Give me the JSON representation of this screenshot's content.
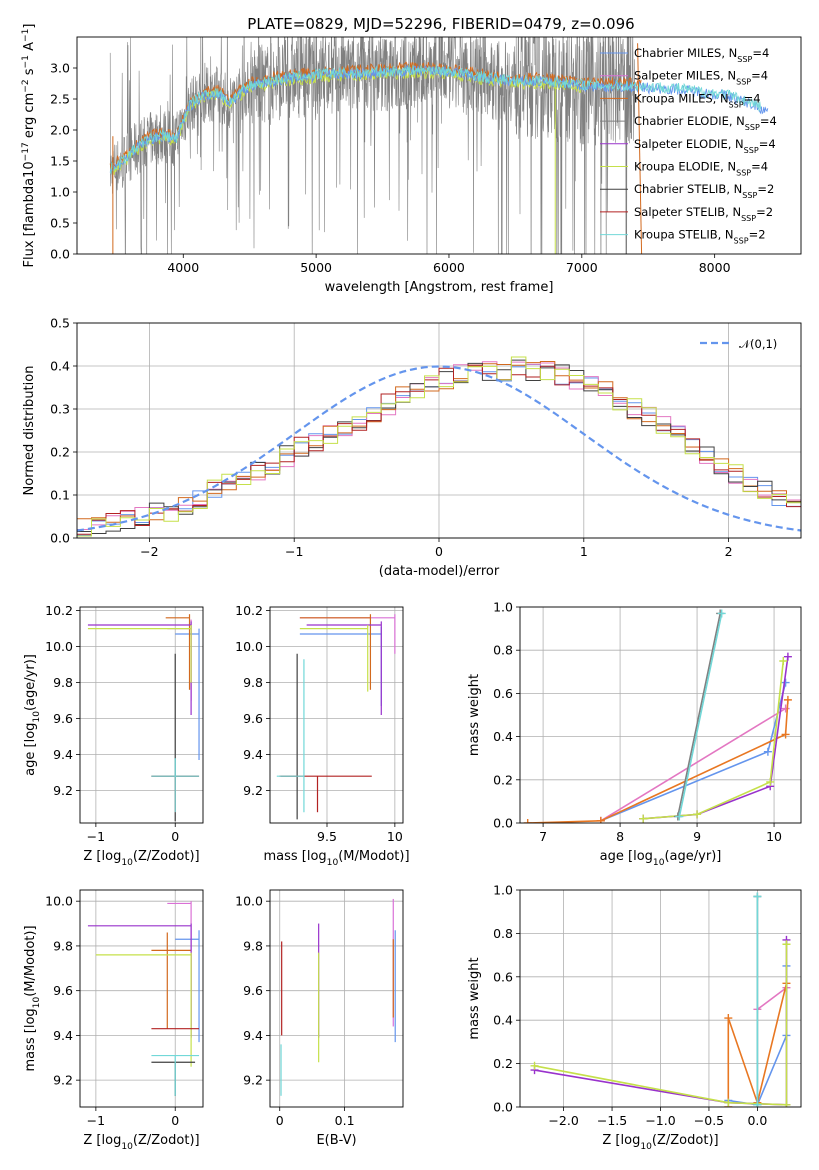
{
  "figure": {
    "title": "PLATE=0829, MJD=52296, FIBERID=0479, z=0.096"
  },
  "colors": {
    "cornflower": "#6495ED",
    "orchid": "#DA70D6",
    "chocolate": "#D2691E",
    "gray": "#808080",
    "purple": "#9932CC",
    "yellowgreen": "#C5E04A",
    "dim": "#404040",
    "red": "#B22222",
    "turquoise": "#72D8D8",
    "hotpink": "#E377C2",
    "orange": "#E87722",
    "grid": "#b0b0b0"
  },
  "chart_data": [
    {
      "id": "spectrum",
      "type": "line",
      "xlabel": "wavelength [Angstrom, rest frame]",
      "ylabel": "Flux [f$_\\lambda$10$^{-17}$ erg cm$^{-2}$ s$^{-1}$ A$^{-1}$]",
      "xlim": [
        3200,
        8650
      ],
      "ylim": [
        0,
        3.5
      ],
      "xticks": [
        4000,
        5000,
        6000,
        7000,
        8000
      ],
      "yticks": [
        0.0,
        0.5,
        1.0,
        1.5,
        2.0,
        2.5,
        3.0
      ],
      "legend_position": "top-right",
      "legend": [
        {
          "label": "Chabrier MILES, N$_{SSP}$=4",
          "color": "#6495ED"
        },
        {
          "label": "Salpeter MILES, N$_{SSP}$=4",
          "color": "#DA70D6"
        },
        {
          "label": "Kroupa MILES, N$_{SSP}$=4",
          "color": "#D2691E"
        },
        {
          "label": "Chabrier ELODIE, N$_{SSP}$=4",
          "color": "#808080"
        },
        {
          "label": "Salpeter ELODIE, N$_{SSP}$=4",
          "color": "#9932CC"
        },
        {
          "label": "Kroupa ELODIE, N$_{SSP}$=4",
          "color": "#C5E04A"
        },
        {
          "label": "Chabrier STELIB, N$_{SSP}$=2",
          "color": "#404040"
        },
        {
          "label": "Salpeter STELIB, N$_{SSP}$=2",
          "color": "#B22222"
        },
        {
          "label": "Kroupa STELIB, N$_{SSP}$=2",
          "color": "#72D8D8"
        }
      ],
      "continuum": {
        "x": [
          3450,
          3550,
          3650,
          3750,
          3850,
          3950,
          4000,
          4050,
          4150,
          4250,
          4350,
          4500,
          4700,
          4900,
          5100,
          5300,
          5500,
          5700,
          5900,
          6100,
          6300,
          6500,
          6700,
          6900,
          7100,
          7300,
          7500,
          7700,
          7900,
          8100,
          8300,
          8400
        ],
        "y": [
          1.35,
          1.5,
          1.7,
          1.85,
          1.9,
          1.85,
          2.15,
          2.4,
          2.55,
          2.6,
          2.45,
          2.7,
          2.8,
          2.85,
          2.9,
          2.9,
          2.92,
          2.95,
          2.95,
          2.9,
          2.82,
          2.78,
          2.78,
          2.74,
          2.7,
          2.7,
          2.68,
          2.66,
          2.6,
          2.55,
          2.4,
          2.3
        ]
      }
    },
    {
      "id": "residuals",
      "type": "line",
      "xlabel": "(data-model)/error",
      "ylabel": "Normed distribution",
      "xlim": [
        -2.5,
        2.5
      ],
      "ylim": [
        0,
        0.5
      ],
      "xticks": [
        -2,
        -1,
        0,
        1,
        2
      ],
      "xticklabels": [
        "−2",
        "−1",
        "0",
        "1",
        "2"
      ],
      "yticks": [
        0.0,
        0.1,
        0.2,
        0.3,
        0.4,
        0.5
      ],
      "legend": [
        {
          "label": "$\\mathcal{N}(0,1)$",
          "color": "#6495ED"
        }
      ],
      "bin_width": 0.1,
      "bins_start": -2.5,
      "hist": [
        0.02,
        0.03,
        0.04,
        0.04,
        0.05,
        0.06,
        0.06,
        0.07,
        0.09,
        0.11,
        0.13,
        0.14,
        0.16,
        0.17,
        0.19,
        0.21,
        0.22,
        0.24,
        0.26,
        0.27,
        0.29,
        0.31,
        0.33,
        0.35,
        0.36,
        0.37,
        0.38,
        0.39,
        0.39,
        0.39,
        0.4,
        0.39,
        0.39,
        0.38,
        0.37,
        0.36,
        0.34,
        0.32,
        0.3,
        0.28,
        0.26,
        0.24,
        0.21,
        0.19,
        0.17,
        0.15,
        0.13,
        0.11,
        0.09,
        0.08
      ]
    },
    {
      "id": "age_vs_Z",
      "type": "errorbar",
      "xlabel": "Z [log$_{10}$(Z/Z$_\\odot$)]",
      "ylabel": "age  [log$_{10}$(age/yr)]",
      "xlim": [
        -1.2,
        0.35
      ],
      "ylim": [
        9.02,
        10.22
      ],
      "xticks": [
        -1,
        0
      ],
      "xticklabels": [
        "−1",
        "0"
      ],
      "yticks": [
        9.2,
        9.4,
        9.6,
        9.8,
        10.0,
        10.2
      ],
      "points": [
        {
          "color": "#6495ED",
          "x": 0.3,
          "y": 10.07,
          "xerr": [
            0.3,
            0
          ],
          "yerr": [
            0.7,
            0.03
          ]
        },
        {
          "color": "#DA70D6",
          "x": 0.2,
          "y": 10.1,
          "xerr": [
            0.3,
            0
          ],
          "yerr": [
            0.4,
            0.05
          ]
        },
        {
          "color": "#D2691E",
          "x": 0.18,
          "y": 10.16,
          "xerr": [
            0.3,
            0
          ],
          "yerr": [
            0.4,
            0.02
          ]
        },
        {
          "color": "#9932CC",
          "x": 0.2,
          "y": 10.12,
          "xerr": [
            1.3,
            0
          ],
          "yerr": [
            0.5,
            0.02
          ]
        },
        {
          "color": "#C5E04A",
          "x": 0.2,
          "y": 10.1,
          "xerr": [
            1.3,
            0
          ],
          "yerr": [
            0.3,
            0.02
          ]
        },
        {
          "color": "#404040",
          "x": 0.0,
          "y": 9.28,
          "xerr": [
            0.3,
            0.3
          ],
          "yerr": [
            0.25,
            0.68
          ]
        },
        {
          "color": "#B22222",
          "x": 0.0,
          "y": 9.28,
          "xerr": [
            0.3,
            0.3
          ],
          "yerr": [
            0.2,
            0.0
          ]
        },
        {
          "color": "#72D8D8",
          "x": 0.0,
          "y": 9.28,
          "xerr": [
            0.3,
            0.3
          ],
          "yerr": [
            0.2,
            0.1
          ]
        }
      ]
    },
    {
      "id": "age_vs_mass",
      "type": "errorbar",
      "xlabel": "mass [log$_{10}$(M/M$_\\odot$)]",
      "xlim": [
        9.08,
        10.06
      ],
      "ylim": [
        9.02,
        10.22
      ],
      "xticks": [
        9.5,
        10.0
      ],
      "yticks": [
        9.2,
        9.4,
        9.6,
        9.8,
        10.0,
        10.2
      ],
      "points": [
        {
          "color": "#6495ED",
          "x": 9.9,
          "y": 10.07,
          "xerr": [
            0.6,
            0
          ],
          "yerr": [
            0.4,
            0.04
          ]
        },
        {
          "color": "#DA70D6",
          "x": 10.0,
          "y": 10.16,
          "xerr": [
            0.7,
            0
          ],
          "yerr": [
            0.2,
            0.02
          ]
        },
        {
          "color": "#D2691E",
          "x": 9.82,
          "y": 10.16,
          "xerr": [
            0.52,
            0
          ],
          "yerr": [
            0.4,
            0.02
          ]
        },
        {
          "color": "#9932CC",
          "x": 9.9,
          "y": 10.12,
          "xerr": [
            0.55,
            0
          ],
          "yerr": [
            0.5,
            0.02
          ]
        },
        {
          "color": "#C5E04A",
          "x": 9.8,
          "y": 10.1,
          "xerr": [
            0.5,
            0
          ],
          "yerr": [
            0.35,
            0.02
          ]
        },
        {
          "color": "#404040",
          "x": 9.28,
          "y": 9.28,
          "xerr": [
            0.12,
            0.0
          ],
          "yerr": [
            0.24,
            0.68
          ]
        },
        {
          "color": "#B22222",
          "x": 9.43,
          "y": 9.28,
          "xerr": [
            0.28,
            0.4
          ],
          "yerr": [
            0.2,
            0.0
          ]
        },
        {
          "color": "#72D8D8",
          "x": 9.33,
          "y": 9.28,
          "xerr": [
            0.2,
            0.0
          ],
          "yerr": [
            0.2,
            0.65
          ]
        }
      ]
    },
    {
      "id": "weight_vs_age",
      "type": "line",
      "xlabel": "age  [log$_{10}$(age/yr)]",
      "ylabel": "mass weight",
      "xlim": [
        6.7,
        10.35
      ],
      "ylim": [
        0,
        1
      ],
      "xticks": [
        7,
        8,
        9,
        10
      ],
      "yticks": [
        0.0,
        0.2,
        0.4,
        0.6,
        0.8,
        1.0
      ],
      "series": [
        {
          "color": "#6495ED",
          "x": [
            7.75,
            9.92,
            10.15
          ],
          "y": [
            0.01,
            0.33,
            0.65
          ]
        },
        {
          "color": "#E377C2",
          "x": [
            7.75,
            10.15
          ],
          "y": [
            0.01,
            0.53
          ]
        },
        {
          "color": "#E87722",
          "x": [
            6.8,
            7.75,
            10.15,
            10.18
          ],
          "y": [
            0.0,
            0.01,
            0.41,
            0.57
          ]
        },
        {
          "color": "#9932CC",
          "x": [
            8.3,
            9.0,
            9.95,
            10.18
          ],
          "y": [
            0.02,
            0.04,
            0.17,
            0.77
          ]
        },
        {
          "color": "#C5E04A",
          "x": [
            8.3,
            9.0,
            9.95,
            10.12
          ],
          "y": [
            0.02,
            0.04,
            0.19,
            0.75
          ]
        },
        {
          "color": "#808080",
          "x": [
            8.75,
            9.3
          ],
          "y": [
            0.03,
            0.97
          ]
        },
        {
          "color": "#72D8D8",
          "x": [
            8.77,
            9.32
          ],
          "y": [
            0.03,
            0.97
          ]
        }
      ]
    },
    {
      "id": "mass_vs_Z",
      "type": "errorbar",
      "xlabel": "Z [log$_{10}$(Z/Z$_\\odot$)]",
      "ylabel": "mass [log$_{10}$(M/M$_\\odot$)]",
      "xlim": [
        -1.2,
        0.35
      ],
      "ylim": [
        9.08,
        10.05
      ],
      "xticks": [
        -1,
        0
      ],
      "xticklabels": [
        "−1",
        "0"
      ],
      "yticks": [
        9.2,
        9.4,
        9.6,
        9.8,
        10.0
      ],
      "points": [
        {
          "color": "#6495ED",
          "x": 0.3,
          "y": 9.83,
          "xerr": [
            0.3,
            0
          ],
          "yerr": [
            0.46,
            0.04
          ]
        },
        {
          "color": "#DA70D6",
          "x": 0.2,
          "y": 9.99,
          "xerr": [
            0.3,
            0
          ],
          "yerr": [
            0.55,
            0.01
          ]
        },
        {
          "color": "#D2691E",
          "x": -0.1,
          "y": 9.78,
          "xerr": [
            0.2,
            0.3
          ],
          "yerr": [
            0.35,
            0.08
          ]
        },
        {
          "color": "#9932CC",
          "x": 0.2,
          "y": 9.89,
          "xerr": [
            1.3,
            0
          ],
          "yerr": [
            0.5,
            0.01
          ]
        },
        {
          "color": "#C5E04A",
          "x": 0.2,
          "y": 9.76,
          "xerr": [
            1.2,
            0
          ],
          "yerr": [
            0.5,
            0.01
          ]
        },
        {
          "color": "#404040",
          "x": 0.0,
          "y": 9.28,
          "xerr": [
            0.3,
            0.25
          ],
          "yerr": [
            0.15,
            0.0
          ]
        },
        {
          "color": "#B22222",
          "x": 0.0,
          "y": 9.43,
          "xerr": [
            0.3,
            0.3
          ],
          "yerr": [
            0.0,
            0.0
          ]
        },
        {
          "color": "#72D8D8",
          "x": 0.0,
          "y": 9.31,
          "xerr": [
            0.3,
            0.3
          ],
          "yerr": [
            0.18,
            0.0
          ]
        }
      ]
    },
    {
      "id": "mass_vs_ebv",
      "type": "errorbar",
      "xlabel": "E(B-V)",
      "xlim": [
        -0.015,
        0.19
      ],
      "ylim": [
        9.08,
        10.05
      ],
      "xticks": [
        0.0,
        0.1
      ],
      "yticks": [
        9.2,
        9.4,
        9.6,
        9.8,
        10.0
      ],
      "points": [
        {
          "color": "#6495ED",
          "x": 0.178,
          "y": 9.83,
          "yerr": [
            0.46,
            0.04
          ]
        },
        {
          "color": "#DA70D6",
          "x": 0.175,
          "y": 9.99,
          "yerr": [
            0.55,
            0.02
          ]
        },
        {
          "color": "#D2691E",
          "x": 0.175,
          "y": 9.78,
          "yerr": [
            0.3,
            0.05
          ]
        },
        {
          "color": "#9932CC",
          "x": 0.06,
          "y": 9.89,
          "yerr": [
            0.5,
            0.01
          ]
        },
        {
          "color": "#C5E04A",
          "x": 0.06,
          "y": 9.76,
          "yerr": [
            0.48,
            0.01
          ]
        },
        {
          "color": "#B22222",
          "x": 0.003,
          "y": 9.6,
          "yerr": [
            0.2,
            0.22
          ]
        },
        {
          "color": "#72D8D8",
          "x": 0.002,
          "y": 9.31,
          "yerr": [
            0.18,
            0.05
          ]
        }
      ]
    },
    {
      "id": "weight_vs_Z",
      "type": "line",
      "xlabel": "Z [log$_{10}$(Z/Z$_\\odot$)]",
      "ylabel": "mass weight",
      "xlim": [
        -2.45,
        0.45
      ],
      "ylim": [
        0,
        1
      ],
      "xticks": [
        -2.0,
        -1.5,
        -1.0,
        -0.5,
        0.0
      ],
      "xticklabels": [
        "−2.0",
        "−1.5",
        "−1.0",
        "−0.5",
        "0.0"
      ],
      "yticks": [
        0.0,
        0.2,
        0.4,
        0.6,
        0.8,
        1.0
      ],
      "series": [
        {
          "color": "#6495ED",
          "x": [
            -0.3,
            0.0,
            0.3,
            0.3
          ],
          "y": [
            0.03,
            0.01,
            0.33,
            0.65
          ]
        },
        {
          "color": "#E377C2",
          "x": [
            0.0,
            0.3
          ],
          "y": [
            0.45,
            0.55
          ]
        },
        {
          "color": "#E87722",
          "x": [
            -0.3,
            -0.3,
            0.0,
            0.3
          ],
          "y": [
            0.0,
            0.41,
            0.02,
            0.57
          ]
        },
        {
          "color": "#9932CC",
          "x": [
            -2.3,
            -0.3,
            0.3,
            0.3
          ],
          "y": [
            0.17,
            0.02,
            0.01,
            0.77
          ]
        },
        {
          "color": "#C5E04A",
          "x": [
            -2.3,
            -0.3,
            0.3,
            0.3
          ],
          "y": [
            0.19,
            0.02,
            0.01,
            0.75
          ]
        },
        {
          "color": "#808080",
          "x": [
            0.0,
            0.0
          ],
          "y": [
            0.01,
            0.97
          ]
        },
        {
          "color": "#72D8D8",
          "x": [
            0.0,
            0.0
          ],
          "y": [
            0.01,
            0.97
          ]
        }
      ]
    }
  ]
}
